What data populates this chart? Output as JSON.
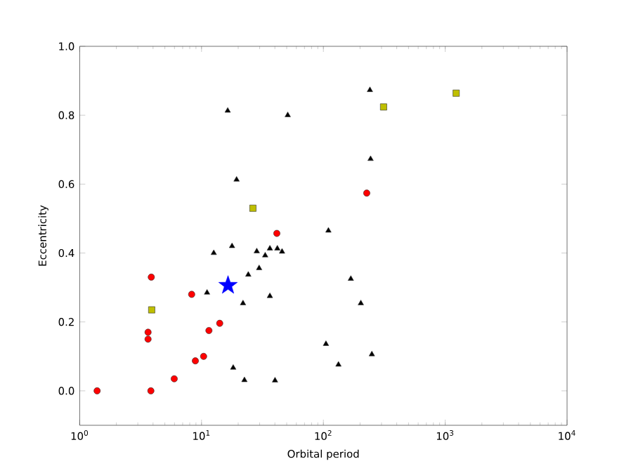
{
  "chart_data": {
    "type": "scatter",
    "xlabel": "Orbital period",
    "ylabel": "Eccentricity",
    "log": "x",
    "grid": false,
    "xlim": [
      1,
      10000
    ],
    "ylim": [
      -0.1,
      1.0
    ],
    "xticks": [
      {
        "value": 1,
        "label": "10$^{0}$"
      },
      {
        "value": 10,
        "label": "10$^{1}$"
      },
      {
        "value": 100,
        "label": "10$^{2}$"
      },
      {
        "value": 1000,
        "label": "10$^{3}$"
      },
      {
        "value": 10000,
        "label": "10$^{4}$"
      }
    ],
    "yticks": [
      {
        "value": 0,
        "label": "0.0"
      },
      {
        "value": 0.2,
        "label": "0.2"
      },
      {
        "value": 0.4,
        "label": "0.4"
      },
      {
        "value": 0.6,
        "label": "0.6"
      },
      {
        "value": 0.8,
        "label": "0.8"
      },
      {
        "value": 1.0,
        "label": "1.0"
      }
    ],
    "series": [
      {
        "marker": "triangle",
        "color": "#000000",
        "x": [
          12.6,
          17.8,
          11.1,
          21.9,
          24.2,
          29.7,
          28.4,
          33.3,
          36.4,
          41.9,
          45.8,
          36.4,
          18.2,
          22.5,
          40.1,
          105,
          110,
          133,
          168,
          203,
          250,
          244,
          241,
          16.4,
          51,
          19.4
        ],
        "values": [
          0.4,
          0.42,
          0.285,
          0.254,
          0.337,
          0.356,
          0.405,
          0.393,
          0.413,
          0.413,
          0.404,
          0.275,
          0.067,
          0.031,
          0.03,
          0.136,
          0.465,
          0.076,
          0.325,
          0.254,
          0.106,
          0.673,
          0.873,
          0.813,
          0.8,
          0.613
        ]
      },
      {
        "marker": "circle",
        "color": "#ff0000",
        "x": [
          1.39,
          3.87,
          3.64,
          3.64,
          3.84,
          5.97,
          8.3,
          8.9,
          10.4,
          11.5,
          14.1,
          41.5,
          227
        ],
        "values": [
          0.0,
          0.33,
          0.17,
          0.15,
          0.0,
          0.035,
          0.28,
          0.087,
          0.1,
          0.175,
          0.196,
          0.457,
          0.574
        ]
      },
      {
        "marker": "square",
        "color": "#bfbf00",
        "x": [
          3.9,
          26.4,
          312,
          1230
        ],
        "values": [
          0.235,
          0.53,
          0.824,
          0.864
        ]
      },
      {
        "marker": "star",
        "color": "#0000ff",
        "x": [
          16.5
        ],
        "values": [
          0.306
        ]
      }
    ]
  }
}
